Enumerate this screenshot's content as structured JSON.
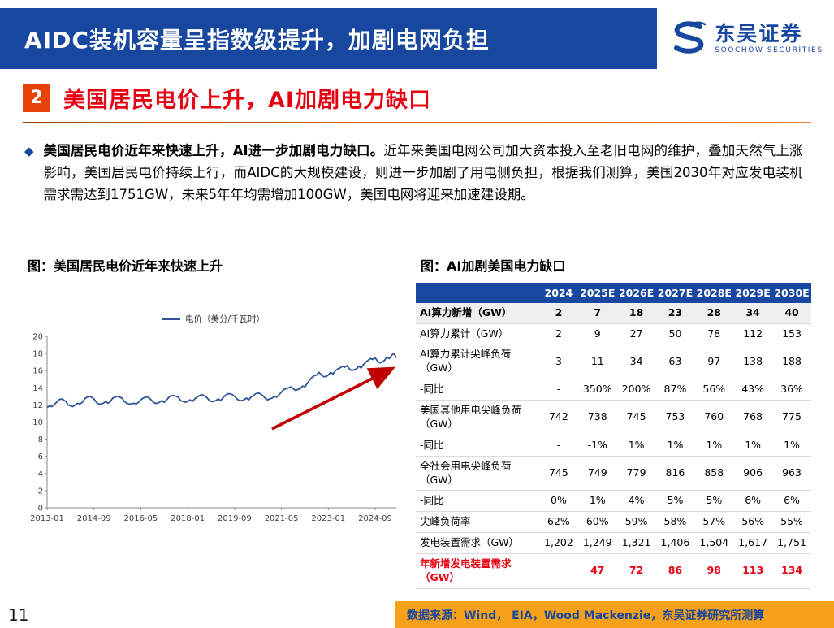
{
  "header": {
    "title": "AIDC装机容量呈指数级提升，加剧电网负担",
    "brand_cn": "东吴证券",
    "brand_en": "SOOCHOW SECURITIES"
  },
  "section": {
    "number": "2",
    "title": "美国居民电价上升，AI加剧电力缺口"
  },
  "paragraph": {
    "lead": "美国居民电价近年来快速上升，AI进一步加剧电力缺口。",
    "body": "近年来美国电网公司加大资本投入至老旧电网的维护，叠加天然气上涨影响，美国居民电价持续上行，而AIDC的大规模建设，则进一步加剧了用电侧负担，根据我们测算，美国2030年对应发电装机需求需达到1751GW，未来5年年均需增加100GW，美国电网将迎来加速建设期。"
  },
  "figures": {
    "left_title": "图：美国居民电价近年来快速上升",
    "right_title": "图：AI加剧美国电力缺口",
    "legend_label": "电价（美分/千瓦时）"
  },
  "footer": {
    "page": "11",
    "source": "数据来源：Wind， EIA，Wood Mackenzie，东吴证券研究所测算"
  },
  "colors": {
    "brand_blue": "#17479E",
    "accent_red": "#E60012",
    "section_box_orange": "#E8420B",
    "footer_orange": "#F7A11B",
    "line_blue": "#2F5597",
    "arrow_red": "#C00000"
  },
  "chart_data": [
    {
      "type": "line",
      "title": "美国居民电价近年来快速上升",
      "series_name": "电价（美分/千瓦时）",
      "ylim": [
        0,
        20
      ],
      "ytick": 2,
      "x_start": "2013-01",
      "x_freq": "monthly",
      "x_ticks": [
        {
          "index": 0,
          "label": "2013-01"
        },
        {
          "index": 20,
          "label": "2014-09"
        },
        {
          "index": 40,
          "label": "2016-05"
        },
        {
          "index": 60,
          "label": "2018-01"
        },
        {
          "index": 80,
          "label": "2019-09"
        },
        {
          "index": 100,
          "label": "2021-05"
        },
        {
          "index": 120,
          "label": "2023-01"
        },
        {
          "index": 140,
          "label": "2024-09"
        }
      ],
      "values": [
        11.7,
        11.9,
        11.8,
        12.0,
        12.3,
        12.6,
        12.7,
        12.6,
        12.4,
        12.0,
        11.9,
        11.8,
        12.0,
        12.2,
        12.1,
        12.3,
        12.7,
        12.9,
        13.0,
        12.9,
        12.7,
        12.3,
        12.1,
        12.1,
        12.2,
        12.4,
        12.2,
        12.4,
        12.8,
        12.9,
        13.0,
        12.9,
        12.8,
        12.4,
        12.2,
        12.1,
        12.1,
        12.2,
        12.1,
        12.3,
        12.6,
        12.8,
        12.9,
        12.9,
        12.7,
        12.4,
        12.2,
        12.2,
        12.3,
        12.5,
        12.3,
        12.6,
        12.9,
        13.1,
        13.1,
        13.0,
        12.9,
        12.5,
        12.4,
        12.3,
        12.4,
        12.6,
        12.4,
        12.7,
        12.9,
        13.1,
        13.2,
        13.1,
        12.9,
        12.6,
        12.4,
        12.4,
        12.5,
        12.7,
        12.5,
        12.8,
        13.1,
        13.3,
        13.3,
        13.2,
        13.0,
        12.7,
        12.5,
        12.5,
        12.6,
        12.8,
        12.6,
        12.9,
        13.1,
        13.3,
        13.4,
        13.3,
        13.1,
        12.8,
        12.6,
        12.7,
        12.8,
        13.0,
        12.9,
        13.2,
        13.5,
        13.8,
        13.9,
        14.0,
        14.1,
        13.9,
        13.7,
        13.8,
        13.9,
        14.2,
        14.1,
        14.5,
        14.9,
        15.2,
        15.4,
        15.5,
        15.8,
        15.5,
        15.3,
        15.3,
        15.5,
        15.8,
        15.6,
        16.0,
        16.2,
        16.3,
        16.5,
        16.4,
        16.6,
        16.2,
        16.0,
        16.1,
        16.2,
        16.5,
        16.3,
        16.7,
        17.0,
        17.2,
        17.4,
        17.3,
        17.5,
        17.1,
        16.9,
        17.0,
        17.2,
        17.6,
        17.4,
        17.8,
        18.0,
        17.5
      ],
      "line_color": "#2F5597",
      "arrow": {
        "from_index": 96,
        "from_value": 9.2,
        "to_index": 147,
        "to_value": 16.2,
        "color": "#C00000"
      },
      "grid": false,
      "legend_position": "top-center"
    },
    {
      "type": "table",
      "title": "AI加剧美国电力缺口",
      "columns": [
        "",
        "2024",
        "2025E",
        "2026E",
        "2027E",
        "2028E",
        "2029E",
        "2030E"
      ],
      "rows": [
        {
          "label": "AI算力新增（GW）",
          "bold": true,
          "shaded": true,
          "values": [
            "2",
            "7",
            "18",
            "23",
            "28",
            "34",
            "40"
          ]
        },
        {
          "label": "AI算力累计（GW）",
          "values": [
            "2",
            "9",
            "27",
            "50",
            "78",
            "112",
            "153"
          ]
        },
        {
          "label": "AI算力累计尖峰负荷（GW）",
          "values": [
            "3",
            "11",
            "34",
            "63",
            "97",
            "138",
            "188"
          ]
        },
        {
          "label": "-同比",
          "values": [
            "-",
            "350%",
            "200%",
            "87%",
            "56%",
            "43%",
            "36%"
          ]
        },
        {
          "label": "美国其他用电尖峰负荷（GW）",
          "values": [
            "742",
            "738",
            "745",
            "753",
            "760",
            "768",
            "775"
          ]
        },
        {
          "label": "-同比",
          "values": [
            "-",
            "-1%",
            "1%",
            "1%",
            "1%",
            "1%",
            "1%"
          ]
        },
        {
          "label": "全社会用电尖峰负荷（GW）",
          "values": [
            "745",
            "749",
            "779",
            "816",
            "858",
            "906",
            "963"
          ]
        },
        {
          "label": "-同比",
          "values": [
            "0%",
            "1%",
            "4%",
            "5%",
            "5%",
            "6%",
            "6%"
          ]
        },
        {
          "label": "尖峰负荷率",
          "values": [
            "62%",
            "60%",
            "59%",
            "58%",
            "57%",
            "56%",
            "55%"
          ]
        },
        {
          "label": "发电装置需求（GW）",
          "values": [
            "1,202",
            "1,249",
            "1,321",
            "1,406",
            "1,504",
            "1,617",
            "1,751"
          ]
        },
        {
          "label": "年新增发电装置需求（GW）",
          "red": true,
          "bold": true,
          "values": [
            "",
            "47",
            "72",
            "86",
            "98",
            "113",
            "134"
          ]
        }
      ]
    }
  ]
}
